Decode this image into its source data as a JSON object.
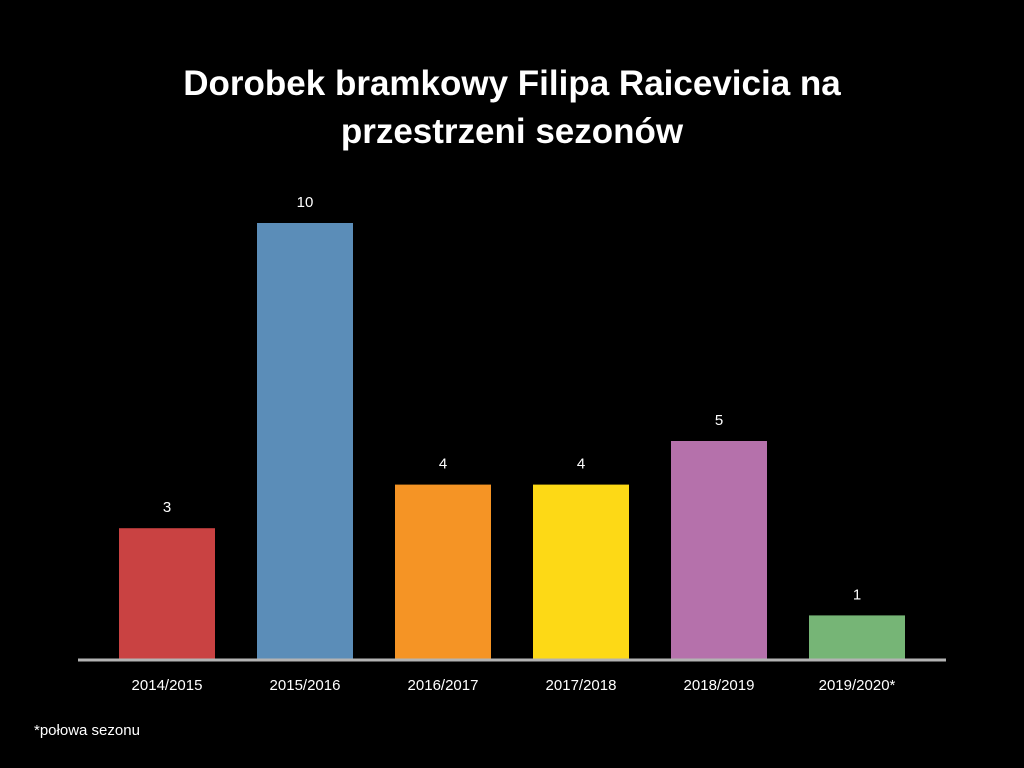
{
  "chart_data": {
    "type": "bar",
    "title": "Dorobek bramkowy Filipa Raicevicia na przestrzeni sezonów",
    "categories": [
      "2014/2015",
      "2015/2016",
      "2016/2017",
      "2017/2018",
      "2018/2019",
      "2019/2020*"
    ],
    "values": [
      3,
      10,
      4,
      4,
      5,
      1
    ],
    "colors": [
      "#c94242",
      "#5b8db8",
      "#f59425",
      "#fdd916",
      "#b571ab",
      "#76b576"
    ],
    "xlabel": "",
    "ylabel": "",
    "ylim": [
      0,
      10
    ],
    "grid": false,
    "legend": "none",
    "data_labels": true
  },
  "footnote": "*połowa sezonu"
}
